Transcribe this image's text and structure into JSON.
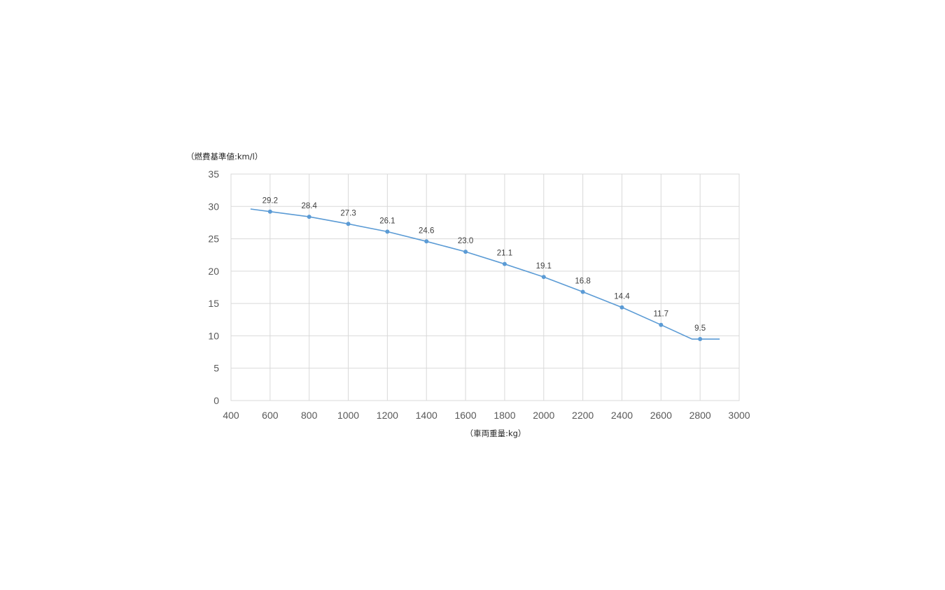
{
  "chart_data": {
    "type": "line",
    "ylabel": "（燃費基準値:km/l）",
    "xlabel": "（車両重量:kg）",
    "xlim": [
      400,
      3000
    ],
    "ylim": [
      0,
      35
    ],
    "xticks": [
      400,
      600,
      800,
      1000,
      1200,
      1400,
      1600,
      1800,
      2000,
      2200,
      2400,
      2600,
      2800,
      3000
    ],
    "yticks": [
      0,
      5,
      10,
      15,
      20,
      25,
      30,
      35
    ],
    "grid": true,
    "legend": "none",
    "series": [
      {
        "line": [
          [
            500,
            29.6
          ],
          [
            600,
            29.2
          ],
          [
            800,
            28.4
          ],
          [
            1000,
            27.3
          ],
          [
            1200,
            26.1
          ],
          [
            1400,
            24.6
          ],
          [
            1600,
            23.0
          ],
          [
            1800,
            21.1
          ],
          [
            2000,
            19.1
          ],
          [
            2200,
            16.8
          ],
          [
            2400,
            14.4
          ],
          [
            2600,
            11.7
          ],
          [
            2759,
            9.5
          ],
          [
            2900,
            9.5
          ]
        ],
        "points": [
          {
            "x": 600,
            "y": 29.2,
            "label": "29.2"
          },
          {
            "x": 800,
            "y": 28.4,
            "label": "28.4"
          },
          {
            "x": 1000,
            "y": 27.3,
            "label": "27.3"
          },
          {
            "x": 1200,
            "y": 26.1,
            "label": "26.1"
          },
          {
            "x": 1400,
            "y": 24.6,
            "label": "24.6"
          },
          {
            "x": 1600,
            "y": 23.0,
            "label": "23.0"
          },
          {
            "x": 1800,
            "y": 21.1,
            "label": "21.1"
          },
          {
            "x": 2000,
            "y": 19.1,
            "label": "19.1"
          },
          {
            "x": 2200,
            "y": 16.8,
            "label": "16.8"
          },
          {
            "x": 2400,
            "y": 14.4,
            "label": "14.4"
          },
          {
            "x": 2600,
            "y": 11.7,
            "label": "11.7"
          },
          {
            "x": 2800,
            "y": 9.5,
            "label": "9.5"
          }
        ],
        "color": "#5b9bd5"
      }
    ]
  }
}
